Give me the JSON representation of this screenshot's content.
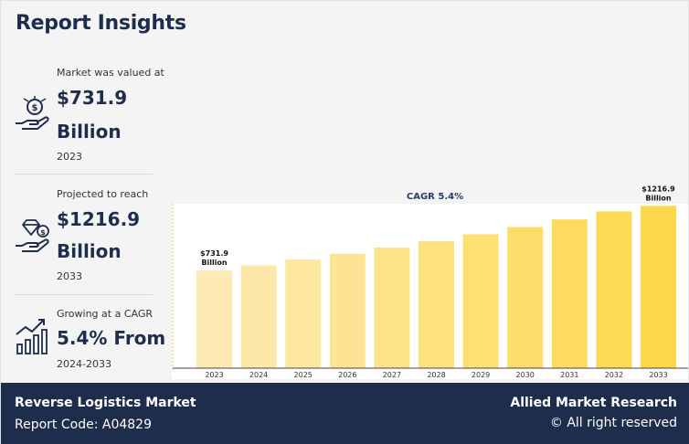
{
  "header": {
    "title": "Report Insights"
  },
  "stats": [
    {
      "label": "Market was valued at",
      "value_line1": "$731.9",
      "value_line2": "Billion",
      "year": "2023",
      "icon": "money-hand-icon"
    },
    {
      "label": "Projected to reach",
      "value_line1": "$1216.9",
      "value_line2": "Billion",
      "year": "2033",
      "icon": "diamond-hand-icon"
    },
    {
      "label": "Growing at a CAGR",
      "value_line1": "5.4% From",
      "year": "2024-2033",
      "icon": "growth-chart-icon"
    }
  ],
  "footer": {
    "report_title": "Reverse Logistics Market",
    "report_code": "Report Code: A04829",
    "brand": "Allied Market Research",
    "rights": "© All right reserved"
  },
  "colors": {
    "navy": "#1f2d4d",
    "bar_light": "#fde9b4",
    "bar_dark": "#fdd84a"
  },
  "chart_data": {
    "type": "bar",
    "annotation": "CAGR 5.4%",
    "categories": [
      "2023",
      "2024",
      "2025",
      "2026",
      "2027",
      "2028",
      "2029",
      "2030",
      "2031",
      "2032",
      "2033"
    ],
    "values": [
      731.9,
      771.4,
      813.1,
      857.0,
      903.3,
      952.1,
      1003.5,
      1057.7,
      1114.8,
      1175.0,
      1216.9
    ],
    "data_labels": [
      {
        "index": 0,
        "line1": "$731.9",
        "line2": "Billion"
      },
      {
        "index": 10,
        "line1": "$1216.9",
        "line2": "Billion"
      }
    ],
    "ylim": [
      0,
      1260
    ],
    "grid": false,
    "legend": "none"
  }
}
